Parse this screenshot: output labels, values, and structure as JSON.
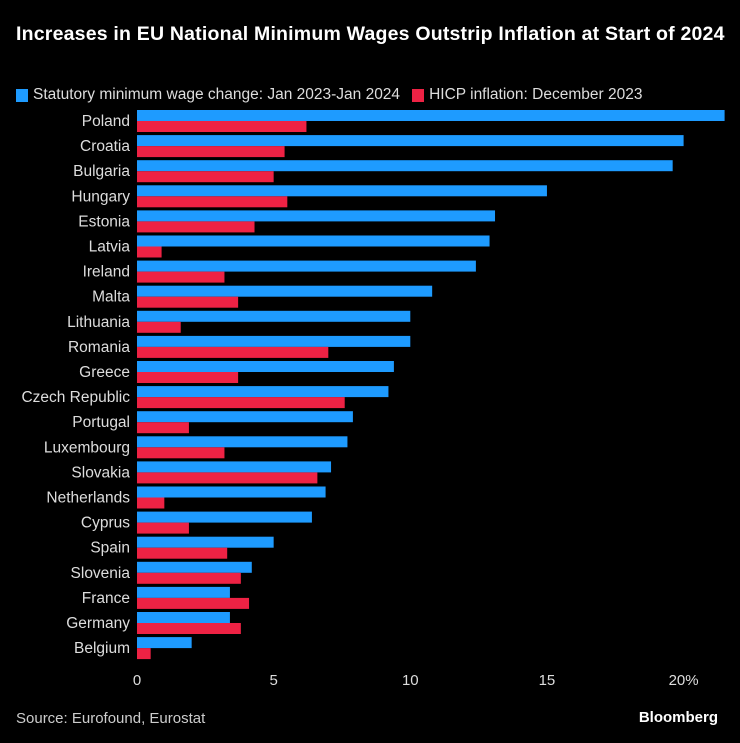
{
  "title": "Increases in EU National Minimum Wages Outstrip Inflation at Start of 2024",
  "source": "Source: Eurofound, Eurostat",
  "logo": "Bloomberg",
  "colors": {
    "wage": "#1E9BFF",
    "inflation": "#EE2244",
    "background": "#000000"
  },
  "chart_data": {
    "type": "bar",
    "orientation": "horizontal",
    "title": "Increases in EU National Minimum Wages Outstrip Inflation at Start of 2024",
    "categories": [
      "Poland",
      "Croatia",
      "Bulgaria",
      "Hungary",
      "Estonia",
      "Latvia",
      "Ireland",
      "Malta",
      "Lithuania",
      "Romania",
      "Greece",
      "Czech Republic",
      "Portugal",
      "Luxembourg",
      "Slovakia",
      "Netherlands",
      "Cyprus",
      "Spain",
      "Slovenia",
      "France",
      "Germany",
      "Belgium"
    ],
    "series": [
      {
        "name": "Statutory minimum wage change: Jan 2023-Jan 2024",
        "values": [
          21.5,
          20.0,
          19.6,
          15.0,
          13.1,
          12.9,
          12.4,
          10.8,
          10.0,
          10.0,
          9.4,
          9.2,
          7.9,
          7.7,
          7.1,
          6.9,
          6.4,
          5.0,
          4.2,
          3.4,
          3.4,
          2.0
        ]
      },
      {
        "name": "HICP inflation: December 2023",
        "values": [
          6.2,
          5.4,
          5.0,
          5.5,
          4.3,
          0.9,
          3.2,
          3.7,
          1.6,
          7.0,
          3.7,
          7.6,
          1.9,
          3.2,
          6.6,
          1.0,
          1.9,
          3.3,
          3.8,
          4.1,
          3.8,
          0.5
        ]
      }
    ],
    "xlim": [
      0,
      21.6
    ],
    "xticks": [
      "0",
      "5",
      "10",
      "15",
      "20%"
    ],
    "xtick_values": [
      0,
      5,
      10,
      15,
      20
    ],
    "grid": false,
    "legend": "top-left"
  }
}
